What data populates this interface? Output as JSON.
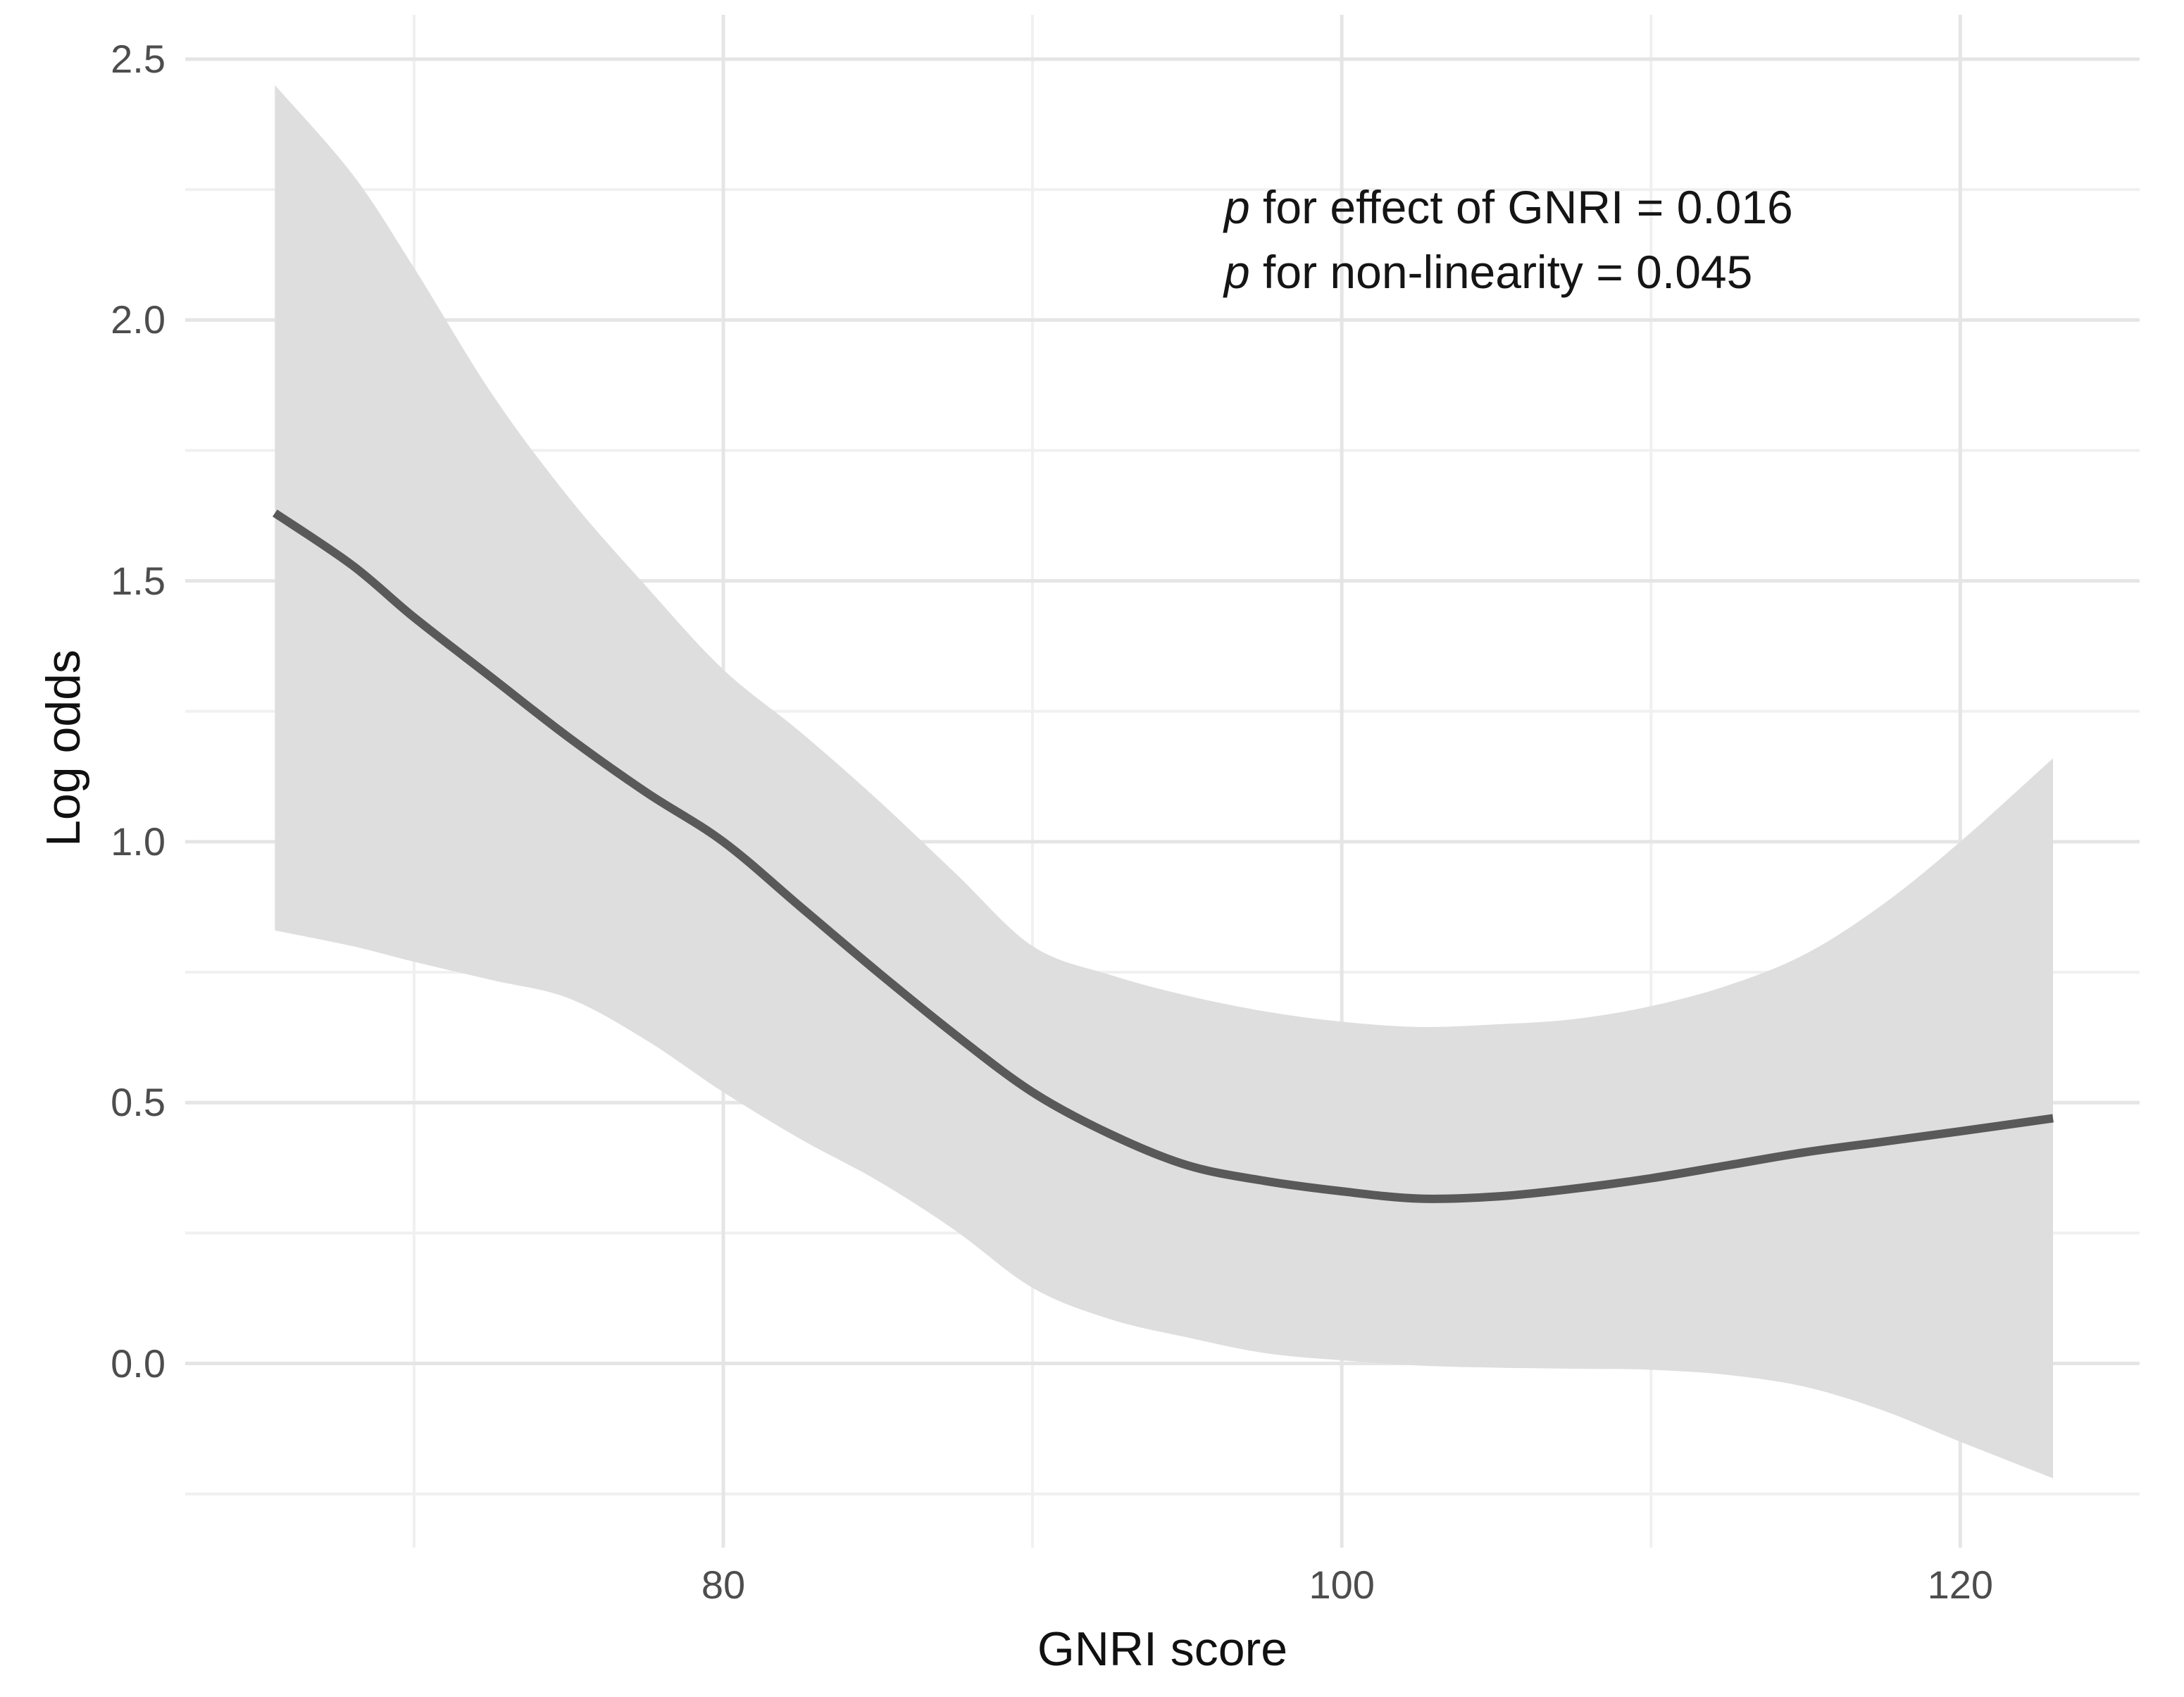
{
  "figure": {
    "background": "#ffffff"
  },
  "chart_data": {
    "type": "line",
    "title": "",
    "xlabel": "GNRI score",
    "ylabel": "Log odds",
    "legend": "none",
    "grid": "major and minor horizontal+vertical, light gray on white",
    "xlim": [
      62.6,
      125.8
    ],
    "ylim": [
      -0.353,
      2.585
    ],
    "xticks": {
      "labels": [
        "80",
        "100",
        "120"
      ],
      "values": [
        80,
        100,
        120
      ],
      "minor": [
        70,
        90,
        110
      ]
    },
    "yticks": {
      "labels": [
        "0.0",
        "0.5",
        "1.0",
        "1.5",
        "2.0",
        "2.5"
      ],
      "values": [
        0,
        0.5,
        1.0,
        1.5,
        2.0,
        2.5
      ],
      "minor": [
        -0.25,
        0.25,
        0.75,
        1.25,
        1.75,
        2.25
      ]
    },
    "x": [
      65.5,
      68,
      70,
      72.5,
      75,
      77.5,
      80,
      82.5,
      85,
      87.5,
      90,
      92.5,
      95,
      97.5,
      100,
      102.5,
      105,
      107.5,
      110,
      112.5,
      115,
      117.5,
      120,
      123
    ],
    "series": [
      {
        "name": "fitted log odds",
        "values": [
          1.63,
          1.53,
          1.43,
          1.315,
          1.2,
          1.095,
          1.0,
          0.875,
          0.75,
          0.63,
          0.52,
          0.44,
          0.38,
          0.35,
          0.33,
          0.316,
          0.32,
          0.335,
          0.355,
          0.38,
          0.405,
          0.425,
          0.445,
          0.47
        ]
      },
      {
        "name": "95% CI upper",
        "values": [
          2.45,
          2.28,
          2.1,
          1.86,
          1.66,
          1.49,
          1.33,
          1.21,
          1.08,
          0.94,
          0.8,
          0.745,
          0.705,
          0.675,
          0.655,
          0.645,
          0.65,
          0.66,
          0.685,
          0.725,
          0.785,
          0.88,
          1.0,
          1.16
        ]
      },
      {
        "name": "95% CI lower",
        "values": [
          0.83,
          0.8,
          0.77,
          0.735,
          0.7,
          0.62,
          0.52,
          0.43,
          0.35,
          0.255,
          0.145,
          0.085,
          0.05,
          0.02,
          0.006,
          -0.004,
          -0.008,
          -0.01,
          -0.012,
          -0.022,
          -0.045,
          -0.09,
          -0.15,
          -0.22
        ]
      }
    ],
    "annotations": [
      {
        "text_italic": "p",
        "text": " for effect of GNRI = 0.016"
      },
      {
        "text_italic": "p",
        "text": " for non-linearity = 0.045"
      }
    ],
    "styles": {
      "band_color": "#dedede",
      "line_color": "#595959",
      "grid_major_color": "#e5e5e5",
      "grid_minor_color": "#f0f0f0",
      "tick_label_color": "#4d4d4d",
      "title_color": "#111111"
    }
  }
}
